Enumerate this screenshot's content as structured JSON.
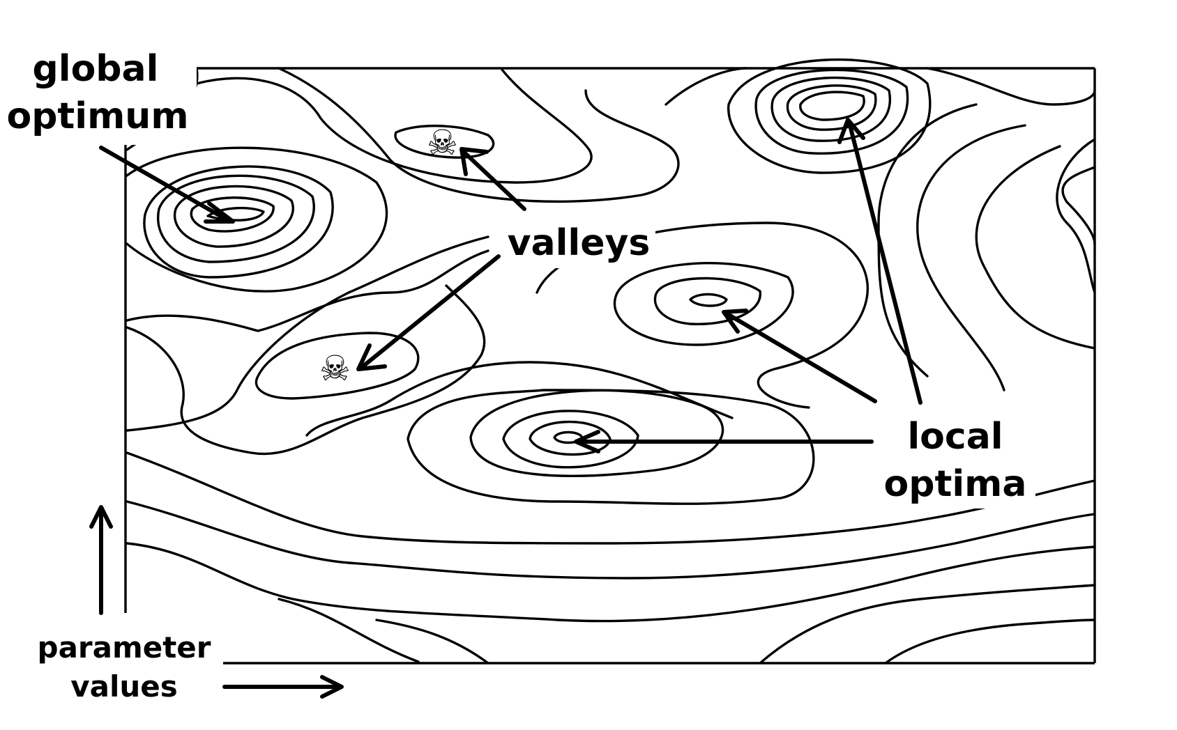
{
  "labels": {
    "global_optimum": [
      "global",
      "optimum"
    ],
    "valleys": "valleys",
    "local_optima": [
      "local",
      "optima"
    ],
    "parameter_values": [
      "parameter",
      "values"
    ]
  },
  "icons": {
    "valley_marker": "skull-and-crossbones-icon",
    "valley_glyph": "☠"
  },
  "colors": {
    "stroke": "#000000",
    "background": "#ffffff"
  }
}
